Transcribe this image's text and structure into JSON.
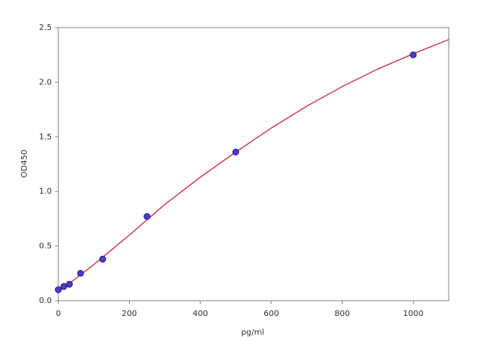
{
  "chart_data": {
    "type": "scatter",
    "x_label": "pg/ml",
    "y_label": "OD450",
    "xlim": [
      0,
      1100
    ],
    "ylim": [
      0,
      2.5
    ],
    "xticks": [
      0,
      200,
      400,
      600,
      800,
      1000
    ],
    "yticks": [
      {
        "value": 0,
        "label": "0.0"
      },
      0.5,
      {
        "value": 1,
        "label": "1.0"
      },
      1.5,
      {
        "value": 2,
        "label": "2.0"
      },
      2.5
    ],
    "series": [
      {
        "type": "scatter",
        "color": "#4a3ad0",
        "x": [
          0,
          15.6,
          31.25,
          62.5,
          125,
          250,
          500,
          1000
        ],
        "values": [
          0.1,
          0.13,
          0.15,
          0.25,
          0.38,
          0.77,
          1.36,
          2.25
        ]
      },
      {
        "type": "line",
        "color": "#c8304a",
        "x": [
          0,
          100,
          200,
          300,
          400,
          500,
          600,
          700,
          800,
          900,
          1000,
          1100
        ],
        "values": [
          0.08,
          0.33,
          0.6,
          0.88,
          1.13,
          1.36,
          1.58,
          1.78,
          1.96,
          2.12,
          2.26,
          2.39
        ]
      }
    ]
  }
}
